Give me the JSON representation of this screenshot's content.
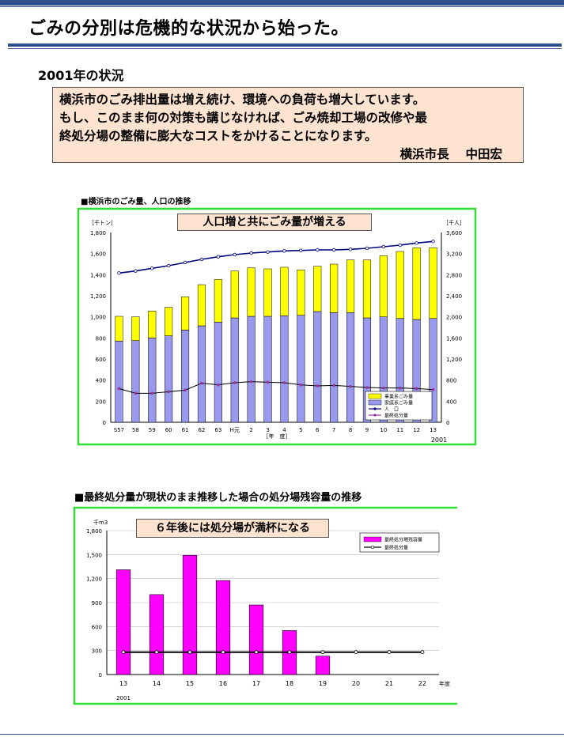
{
  "page": {
    "title": "ごみの分別は危機的な状況から始った。",
    "subtitle": "2001年の状況",
    "quote_lines": [
      "横浜市のごみ排出量は増え続け、環境への負荷も増大しています。",
      "もし、このまま何の対策も講じなければ、ごみ焼却工場の改修や最",
      "終処分場の整備に膨大なコストをかけることになります。"
    ],
    "quote_signature": "横浜市長　 中田宏",
    "chart1_caption": "■横浜市のごみ量、人口の推移",
    "chart1_callout": "人口増と共にごみ量が増える",
    "chart2_caption": "■最終処分量が現状のまま推移した場合の処分場残容量の推移",
    "chart2_callout": "６年後には処分場が満杯になる"
  },
  "colors": {
    "rule": "#2f4f8f",
    "callout_bg": "#fde3d0",
    "frame": "#33dd33",
    "business": "#ffff00",
    "household": "#9999ee",
    "population": "#000080",
    "landfill": "#993399",
    "remaining": "#ff00ff"
  },
  "chart_data": [
    {
      "type": "bar",
      "title": "■横浜市のごみ量、人口の推移",
      "callout": "人口増と共にごみ量が増える",
      "y_left_unit": "［千トン］",
      "y_right_unit": "［千人］",
      "xlabel": "［年　度］",
      "x_note": "2001",
      "categories": [
        "S57",
        "58",
        "59",
        "60",
        "61",
        "62",
        "63",
        "H元",
        "2",
        "3",
        "4",
        "5",
        "6",
        "7",
        "8",
        "9",
        "10",
        "11",
        "12",
        "13"
      ],
      "ylim": [
        0,
        1800
      ],
      "ylim_right": [
        0,
        3600
      ],
      "y_ticks": [
        "0",
        "200",
        "400",
        "600",
        "800",
        "1,000",
        "1,200",
        "1,400",
        "1,600",
        "1,800"
      ],
      "y_right_ticks": [
        "0",
        "400",
        "800",
        "1,200",
        "1,600",
        "2,000",
        "2,400",
        "2,800",
        "3,200",
        "3,600"
      ],
      "series": [
        {
          "name": "事業系ごみ量",
          "kind": "bar-stack",
          "values": [
            235,
            225,
            255,
            270,
            315,
            390,
            405,
            445,
            460,
            450,
            460,
            430,
            430,
            460,
            500,
            550,
            580,
            635,
            680,
            670
          ]
        },
        {
          "name": "家庭系ごみ量",
          "kind": "bar-stack",
          "values": [
            770,
            775,
            800,
            820,
            875,
            915,
            950,
            990,
            1005,
            1005,
            1010,
            1015,
            1050,
            1040,
            1040,
            990,
            1000,
            985,
            975,
            985
          ]
        },
        {
          "name": "人　口",
          "kind": "line-right",
          "values": [
            2830,
            2870,
            2920,
            2970,
            3030,
            3090,
            3140,
            3180,
            3210,
            3230,
            3250,
            3260,
            3270,
            3270,
            3280,
            3300,
            3330,
            3360,
            3400,
            3430
          ]
        },
        {
          "name": "最終処分量",
          "kind": "line",
          "values": [
            320,
            275,
            275,
            290,
            305,
            370,
            355,
            375,
            385,
            380,
            375,
            355,
            345,
            350,
            340,
            330,
            325,
            325,
            320,
            310
          ]
        }
      ],
      "grid": false,
      "legend": "bottom-right"
    },
    {
      "type": "bar",
      "title": "■最終処分量が現状のまま推移した場合の処分場残容量の推移",
      "callout": "６年後には処分場が満杯になる",
      "y_unit": "千m3",
      "xlabel": "年度",
      "x_note": "2001",
      "categories": [
        "13",
        "14",
        "15",
        "16",
        "17",
        "18",
        "19",
        "20",
        "21",
        "22"
      ],
      "ylim": [
        0,
        1800
      ],
      "y_ticks": [
        "0",
        "300",
        "600",
        "900",
        "1,200",
        "1,500",
        "1,800"
      ],
      "series": [
        {
          "name": "最終処分場残容量",
          "kind": "bar",
          "values": [
            1310,
            1000,
            1490,
            1175,
            870,
            550,
            230,
            null,
            null,
            null
          ]
        },
        {
          "name": "最終処分量",
          "kind": "line",
          "values": [
            280,
            280,
            280,
            280,
            280,
            280,
            280,
            280,
            280,
            280
          ]
        }
      ],
      "grid": true,
      "legend": "top-right"
    }
  ]
}
